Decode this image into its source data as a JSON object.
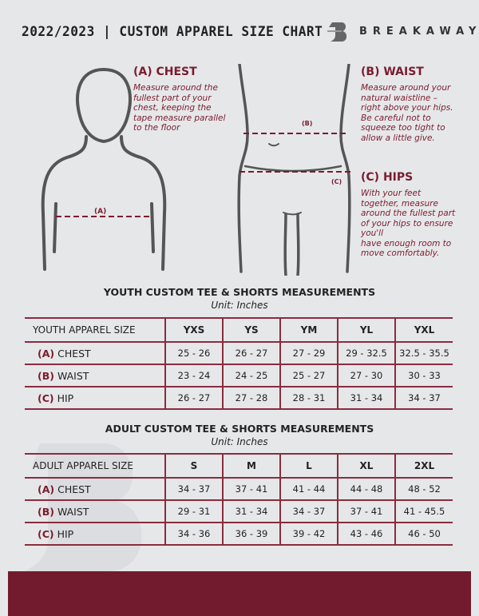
{
  "header": {
    "title": "2022/2023 | CUSTOM APPAREL SIZE CHART",
    "brand": "BREAKAWAY"
  },
  "chest": {
    "heading": "(A) CHEST",
    "lines": [
      "Measure around the",
      "fullest part of your",
      "chest, keeping the",
      "tape measure parallel",
      "to the floor"
    ],
    "marker": "(A)"
  },
  "waist": {
    "heading": "(B) WAIST",
    "lines": [
      "Measure around your",
      "natural waistline –",
      "right above your hips.",
      "Be careful not to",
      "squeeze too tight to",
      "allow a little give."
    ],
    "marker": "(B)"
  },
  "hips": {
    "heading": "(C) HIPS",
    "lines": [
      "With your feet",
      "together, measure",
      "around the fullest part",
      "of your hips to ensure",
      "you'll",
      "have enough room to",
      "move comfortably."
    ],
    "marker": "(C)"
  },
  "colors": {
    "accent": "#7a1c2e",
    "background": "#e6e7e9"
  },
  "youth": {
    "title": "YOUTH CUSTOM TEE & SHORTS MEASUREMENTS",
    "unit": "Unit: Inches",
    "header": [
      "YOUTH APPAREL SIZE",
      "YXS",
      "YS",
      "YM",
      "YL",
      "YXL"
    ],
    "rows": [
      {
        "letter": "(A)",
        "label": "CHEST",
        "values": [
          "25 - 26",
          "26 - 27",
          "27 - 29",
          "29 - 32.5",
          "32.5 - 35.5"
        ]
      },
      {
        "letter": "(B)",
        "label": "WAIST",
        "values": [
          "23 - 24",
          "24 - 25",
          "25 - 27",
          "27 - 30",
          "30 - 33"
        ]
      },
      {
        "letter": "(C)",
        "label": "HIP",
        "values": [
          "26 - 27",
          "27 - 28",
          "28 - 31",
          "31 - 34",
          "34 - 37"
        ]
      }
    ]
  },
  "adult": {
    "title": "ADULT CUSTOM TEE & SHORTS MEASUREMENTS",
    "unit": "Unit: Inches",
    "header": [
      "ADULT APPAREL SIZE",
      "S",
      "M",
      "L",
      "XL",
      "2XL"
    ],
    "rows": [
      {
        "letter": "(A)",
        "label": "CHEST",
        "values": [
          "34 - 37",
          "37 - 41",
          "41 - 44",
          "44 - 48",
          "48 - 52"
        ]
      },
      {
        "letter": "(B)",
        "label": "WAIST",
        "values": [
          "29 - 31",
          "31 - 34",
          "34 - 37",
          "37 - 41",
          "41 - 45.5"
        ]
      },
      {
        "letter": "(C)",
        "label": "HIP",
        "values": [
          "34 - 36",
          "36 - 39",
          "39 - 42",
          "43 - 46",
          "46 - 50"
        ]
      }
    ]
  }
}
